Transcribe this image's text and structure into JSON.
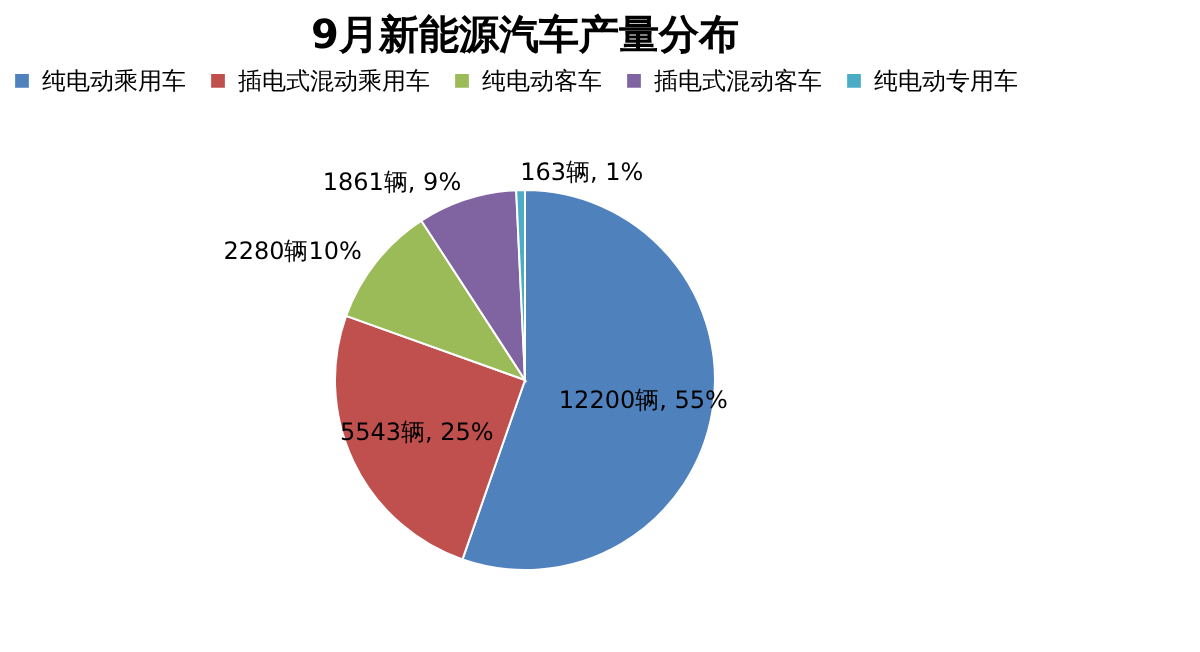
{
  "chart_data": {
    "type": "pie",
    "title": "9月新能源汽车产量分布",
    "categories": [
      "纯电动乘用车",
      "插电式混动乘用车",
      "纯电动客车",
      "插电式混动客车",
      "纯电动专用车"
    ],
    "values": [
      12200,
      5543,
      2280,
      1861,
      163
    ],
    "value_labels": [
      "12200辆, 55%",
      "5543辆, 25%",
      "2280辆10%",
      "1861辆, 9%",
      "163辆, 1%"
    ],
    "colors": [
      "#4f81bd",
      "#c0504d",
      "#9bbb59",
      "#8064a2",
      "#4bacc6"
    ],
    "legend": "top"
  }
}
